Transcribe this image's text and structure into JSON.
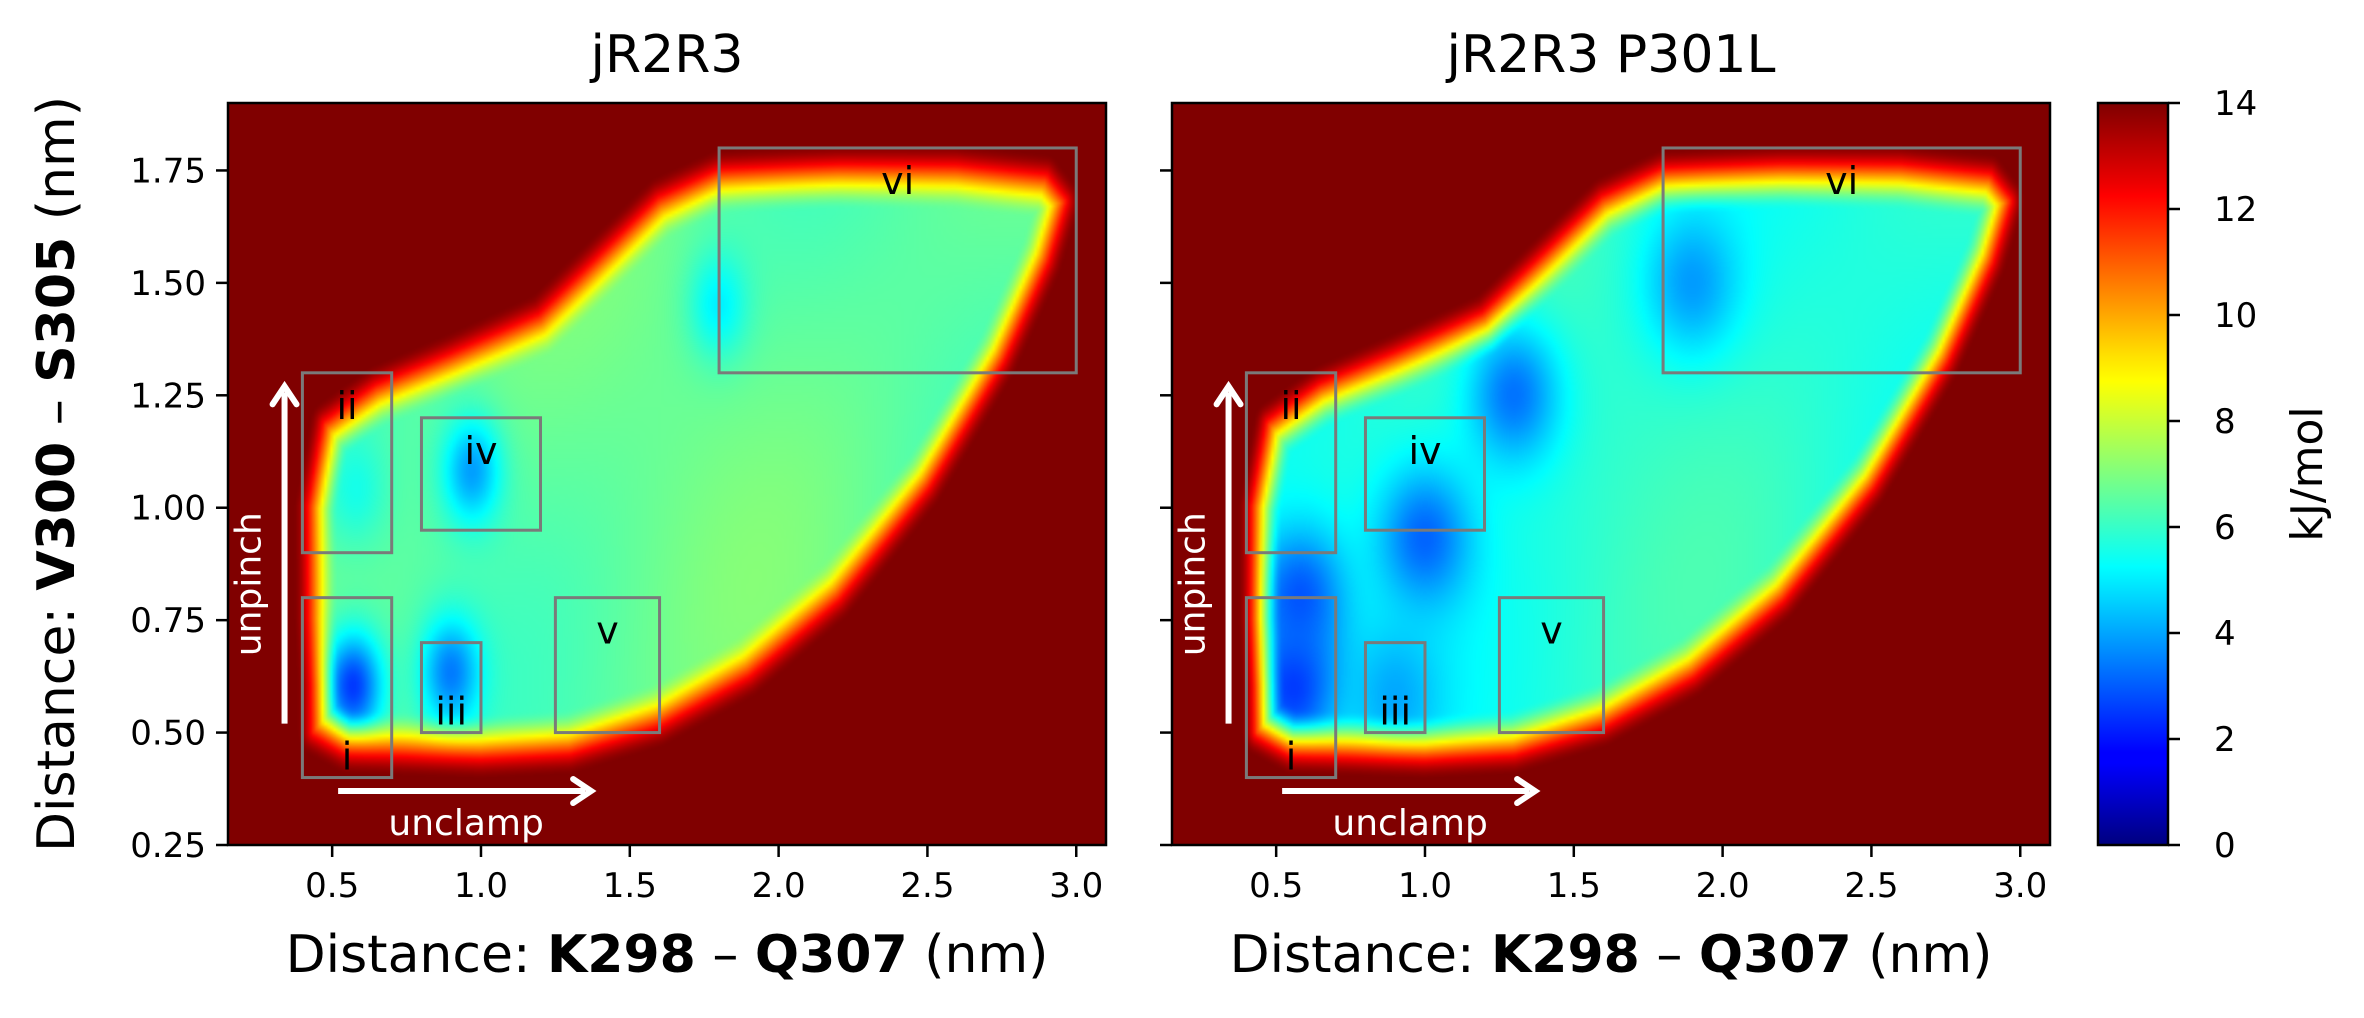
{
  "colorbar": {
    "label": "kJ/mol",
    "ticks": [
      0,
      2,
      4,
      6,
      8,
      10,
      12,
      14
    ],
    "range": [
      0,
      14
    ],
    "colormap": "jet"
  },
  "ylabel": {
    "prefix": "Distance: ",
    "res1": "V300",
    "sep": " – ",
    "res2": "S305",
    "unit": " (nm)"
  },
  "chart_data": [
    {
      "type": "heatmap",
      "title": "jR2R3",
      "xlabel": {
        "prefix": "Distance: ",
        "res1": "K298",
        "sep": " – ",
        "res2": "Q307",
        "unit": " (nm)"
      },
      "xlim": [
        0.15,
        3.1
      ],
      "ylim": [
        0.25,
        1.9
      ],
      "xticks": [
        "0.5",
        "1.0",
        "1.5",
        "2.0",
        "2.5",
        "3.0"
      ],
      "xtick_values": [
        0.5,
        1.0,
        1.5,
        2.0,
        2.5,
        3.0
      ],
      "yticks": [
        "0.25",
        "0.50",
        "0.75",
        "1.00",
        "1.25",
        "1.50",
        "1.75"
      ],
      "ytick_values": [
        0.25,
        0.5,
        0.75,
        1.0,
        1.25,
        1.5,
        1.75
      ],
      "background_energy": 14,
      "regions": [
        {
          "label": "i",
          "x0": 0.4,
          "x1": 0.7,
          "y0": 0.4,
          "y1": 0.8
        },
        {
          "label": "ii",
          "x0": 0.4,
          "x1": 0.7,
          "y0": 0.9,
          "y1": 1.3
        },
        {
          "label": "iii",
          "x0": 0.8,
          "x1": 1.0,
          "y0": 0.5,
          "y1": 0.7
        },
        {
          "label": "iv",
          "x0": 0.8,
          "x1": 1.2,
          "y0": 0.95,
          "y1": 1.2
        },
        {
          "label": "v",
          "x0": 1.25,
          "x1": 1.6,
          "y0": 0.5,
          "y1": 0.8
        },
        {
          "label": "vi",
          "x0": 1.8,
          "x1": 3.0,
          "y0": 1.3,
          "y1": 1.8
        }
      ],
      "annotations": {
        "vertical_arrow": "unpinch",
        "horizontal_arrow": "unclamp"
      },
      "basins": [
        {
          "x": 0.57,
          "y": 0.6,
          "energy": 2.3
        },
        {
          "x": 0.9,
          "y": 0.63,
          "energy": 3.3
        },
        {
          "x": 0.97,
          "y": 1.08,
          "energy": 3.8
        },
        {
          "x": 0.58,
          "y": 1.04,
          "energy": 5.5
        },
        {
          "x": 1.8,
          "y": 1.45,
          "energy": 5.0
        }
      ]
    },
    {
      "type": "heatmap",
      "title": "jR2R3 P301L",
      "xlabel": {
        "prefix": "Distance: ",
        "res1": "K298",
        "sep": " – ",
        "res2": "Q307",
        "unit": " (nm)"
      },
      "xlim": [
        0.15,
        3.1
      ],
      "ylim": [
        0.25,
        1.9
      ],
      "xticks": [
        "0.5",
        "1.0",
        "1.5",
        "2.0",
        "2.5",
        "3.0"
      ],
      "xtick_values": [
        0.5,
        1.0,
        1.5,
        2.0,
        2.5,
        3.0
      ],
      "yticks": [
        "0.25",
        "0.50",
        "0.75",
        "1.00",
        "1.25",
        "1.50",
        "1.75"
      ],
      "ytick_values": [
        0.25,
        0.5,
        0.75,
        1.0,
        1.25,
        1.5,
        1.75
      ],
      "background_energy": 14,
      "regions": [
        {
          "label": "i",
          "x0": 0.4,
          "x1": 0.7,
          "y0": 0.4,
          "y1": 0.8
        },
        {
          "label": "ii",
          "x0": 0.4,
          "x1": 0.7,
          "y0": 0.9,
          "y1": 1.3
        },
        {
          "label": "iii",
          "x0": 0.8,
          "x1": 1.0,
          "y0": 0.5,
          "y1": 0.7
        },
        {
          "label": "iv",
          "x0": 0.8,
          "x1": 1.2,
          "y0": 0.95,
          "y1": 1.2
        },
        {
          "label": "v",
          "x0": 1.25,
          "x1": 1.6,
          "y0": 0.5,
          "y1": 0.8
        },
        {
          "label": "vi",
          "x0": 1.8,
          "x1": 3.0,
          "y0": 1.3,
          "y1": 1.8
        }
      ],
      "annotations": {
        "vertical_arrow": "unpinch",
        "horizontal_arrow": "unclamp"
      },
      "basins": [
        {
          "x": 0.56,
          "y": 0.6,
          "energy": 2.3
        },
        {
          "x": 0.58,
          "y": 0.8,
          "energy": 2.8
        },
        {
          "x": 1.0,
          "y": 0.93,
          "energy": 3.0
        },
        {
          "x": 1.3,
          "y": 1.25,
          "energy": 3.2
        },
        {
          "x": 1.9,
          "y": 1.5,
          "energy": 3.8
        },
        {
          "x": 0.9,
          "y": 0.58,
          "energy": 4.0
        }
      ]
    }
  ]
}
